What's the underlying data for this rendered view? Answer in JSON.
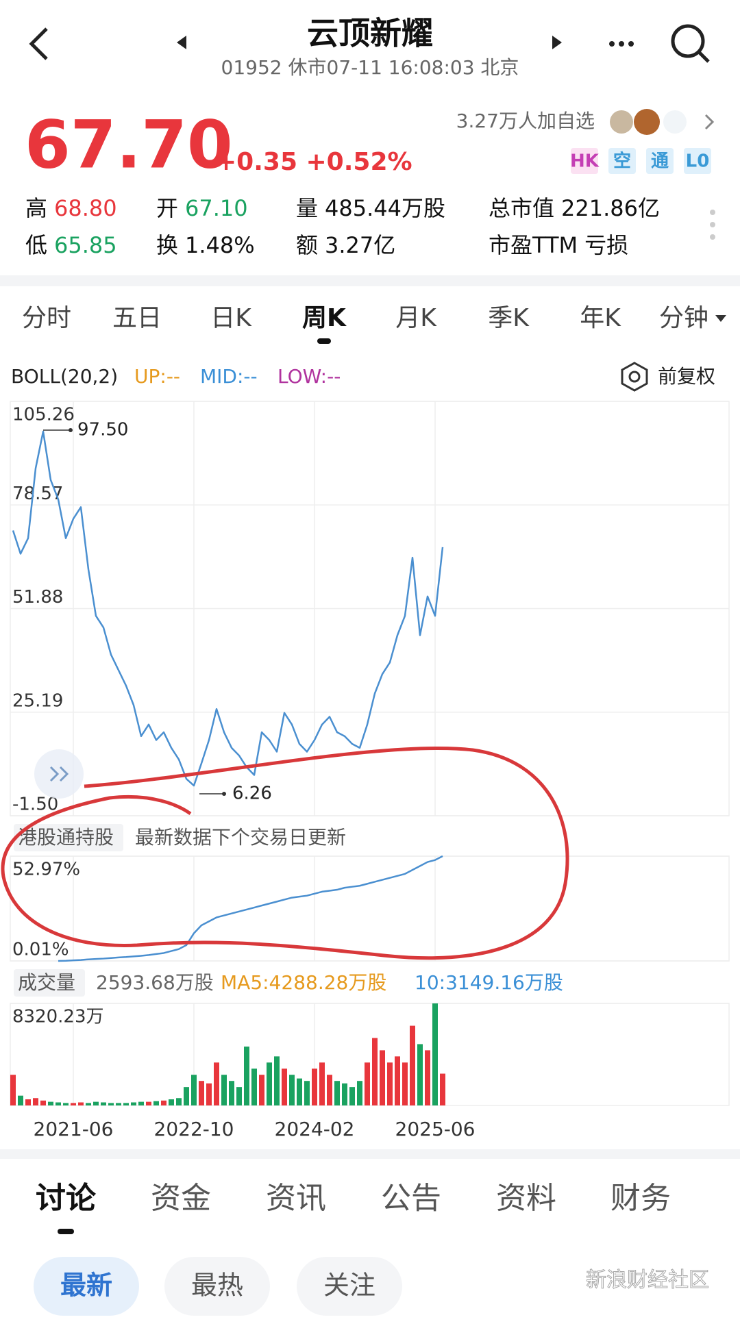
{
  "header": {
    "title": "云顶新耀",
    "subtitle": "01952 休市07-11 16:08:03 北京"
  },
  "quote": {
    "price": "67.70",
    "change": "+0.35 +0.52%",
    "followers": "3.27万人加自选",
    "tags": [
      "HK",
      "空",
      "通",
      "L0"
    ],
    "stats": [
      [
        "高",
        "68.80"
      ],
      [
        "开",
        "67.10"
      ],
      [
        "量",
        "485.44万股"
      ],
      [
        "总市值",
        "221.86亿"
      ],
      [
        "低",
        "65.85"
      ],
      [
        "换",
        "1.48%"
      ],
      [
        "额",
        "3.27亿"
      ],
      [
        "市盈TTM",
        "亏损"
      ]
    ]
  },
  "tabs": [
    "分时",
    "五日",
    "日K",
    "周K",
    "月K",
    "季K",
    "年K",
    "分钟"
  ],
  "indicator": {
    "name": "BOLL(20,2)",
    "up": "UP:--",
    "mid": "MID:--",
    "low": "LOW:--",
    "adjust": "前复权"
  },
  "holdings_header": {
    "label": "港股通持股",
    "note": "最新数据下个交易日更新"
  },
  "volume_header": {
    "label": "成交量",
    "current": "2593.68万股",
    "ma5": "MA5:4288.28万股",
    "ma10": "10:3149.16万股"
  },
  "chart_data": [
    {
      "type": "line",
      "color": "#4a8fd0",
      "grid": true,
      "x": [
        "2020-10",
        "2020-11",
        "2020-12",
        "2021-01",
        "2021-02",
        "2021-03",
        "2021-04",
        "2021-05",
        "2021-06",
        "2021-07",
        "2021-08",
        "2021-09",
        "2021-10",
        "2021-11",
        "2021-12",
        "2022-01",
        "2022-02",
        "2022-03",
        "2022-04",
        "2022-05",
        "2022-06",
        "2022-07",
        "2022-08",
        "2022-09",
        "2022-10",
        "2022-11",
        "2022-12",
        "2023-01",
        "2023-02",
        "2023-03",
        "2023-04",
        "2023-05",
        "2023-06",
        "2023-07",
        "2023-08",
        "2023-09",
        "2023-10",
        "2023-11",
        "2023-12",
        "2024-01",
        "2024-02",
        "2024-03",
        "2024-04",
        "2024-05",
        "2024-06",
        "2024-07",
        "2024-08",
        "2024-09",
        "2024-10",
        "2024-11",
        "2024-12",
        "2025-01",
        "2025-02",
        "2025-03",
        "2025-04",
        "2025-05",
        "2025-06",
        "2025-07"
      ],
      "values": [
        72,
        66,
        70,
        88,
        97.5,
        85,
        80,
        70,
        75,
        78,
        62,
        50,
        47,
        40,
        36,
        32,
        27,
        19,
        22,
        18,
        20,
        16,
        13,
        8,
        6.26,
        12,
        18,
        26,
        20,
        16,
        14,
        11,
        9,
        20,
        18,
        15,
        25,
        22,
        17,
        15,
        18,
        22,
        24,
        20,
        19,
        17,
        16,
        22,
        30,
        35,
        38,
        45,
        50,
        65,
        45,
        55,
        50,
        67.7
      ],
      "ylim": [
        -1.5,
        105.26
      ],
      "yticks": [
        105.26,
        78.57,
        51.88,
        25.19,
        {
          "value": -1.5,
          "label": "-1.50"
        }
      ],
      "annotations": {
        "max": "97.50",
        "min": "6.26"
      }
    },
    {
      "type": "line",
      "color": "#4a8fd0",
      "grid": true,
      "x": [
        "2020-10",
        "2020-11",
        "2020-12",
        "2021-01",
        "2021-02",
        "2021-03",
        "2021-04",
        "2021-05",
        "2021-06",
        "2021-07",
        "2021-08",
        "2021-09",
        "2021-10",
        "2021-11",
        "2021-12",
        "2022-01",
        "2022-02",
        "2022-03",
        "2022-04",
        "2022-05",
        "2022-06",
        "2022-07",
        "2022-08",
        "2022-09",
        "2022-10",
        "2022-11",
        "2022-12",
        "2023-01",
        "2023-02",
        "2023-03",
        "2023-04",
        "2023-05",
        "2023-06",
        "2023-07",
        "2023-08",
        "2023-09",
        "2023-10",
        "2023-11",
        "2023-12",
        "2024-01",
        "2024-02",
        "2024-03",
        "2024-04",
        "2024-05",
        "2024-06",
        "2024-07",
        "2024-08",
        "2024-09",
        "2024-10",
        "2024-11",
        "2024-12",
        "2025-01",
        "2025-02",
        "2025-03",
        "2025-04",
        "2025-05",
        "2025-06",
        "2025-07"
      ],
      "values": [
        null,
        null,
        null,
        null,
        null,
        null,
        0.01,
        0.1,
        0.3,
        0.5,
        0.8,
        1,
        1.2,
        1.5,
        1.8,
        2,
        2.3,
        2.6,
        3,
        3.5,
        4,
        5,
        6,
        8,
        14,
        18,
        20,
        22,
        23,
        24,
        25,
        26,
        27,
        28,
        29,
        30,
        31,
        32,
        32.5,
        33,
        34,
        35,
        35.5,
        36,
        37,
        37.5,
        38,
        39,
        40,
        41,
        42,
        43,
        44,
        46,
        48,
        50,
        51,
        52.97
      ],
      "ylim": [
        0.01,
        52.97
      ],
      "yticks": [
        {
          "value": 52.97,
          "label": "52.97%"
        },
        {
          "value": 0.01,
          "label": "0.01%"
        }
      ]
    },
    {
      "type": "bar",
      "colors": {
        "up": "#e8363c",
        "down": "#1aa260"
      },
      "grid": true,
      "x": [
        "2020-10",
        "2020-11",
        "2020-12",
        "2021-01",
        "2021-02",
        "2021-03",
        "2021-04",
        "2021-05",
        "2021-06",
        "2021-07",
        "2021-08",
        "2021-09",
        "2021-10",
        "2021-11",
        "2021-12",
        "2022-01",
        "2022-02",
        "2022-03",
        "2022-04",
        "2022-05",
        "2022-06",
        "2022-07",
        "2022-08",
        "2022-09",
        "2022-10",
        "2022-11",
        "2022-12",
        "2023-01",
        "2023-02",
        "2023-03",
        "2023-04",
        "2023-05",
        "2023-06",
        "2023-07",
        "2023-08",
        "2023-09",
        "2023-10",
        "2023-11",
        "2023-12",
        "2024-01",
        "2024-02",
        "2024-03",
        "2024-04",
        "2024-05",
        "2024-06",
        "2024-07",
        "2024-08",
        "2024-09",
        "2024-10",
        "2024-11",
        "2024-12",
        "2025-01",
        "2025-02",
        "2025-03",
        "2025-04",
        "2025-05",
        "2025-06",
        "2025-07"
      ],
      "values": [
        2500,
        800,
        500,
        600,
        400,
        300,
        250,
        200,
        200,
        250,
        200,
        300,
        250,
        200,
        200,
        200,
        250,
        300,
        300,
        350,
        400,
        500,
        600,
        1500,
        2500,
        2000,
        1800,
        3500,
        2500,
        2000,
        1500,
        4800,
        3000,
        2500,
        3500,
        4000,
        3000,
        2500,
        2200,
        2000,
        3000,
        3500,
        2500,
        2000,
        1800,
        1500,
        2000,
        3500,
        5500,
        4500,
        3500,
        4000,
        3500,
        6500,
        5000,
        4500,
        8320.23,
        2593.68
      ],
      "ylim": [
        0,
        8320.23
      ],
      "yticks": [
        {
          "value": 8320.23,
          "label": "8320.23万"
        }
      ]
    }
  ],
  "bottom_tabs": [
    "讨论",
    "资金",
    "资讯",
    "公告",
    "资料",
    "财务"
  ],
  "sub_tabs": [
    "最新",
    "最热",
    "关注"
  ],
  "watermark": "新浪财经社区"
}
